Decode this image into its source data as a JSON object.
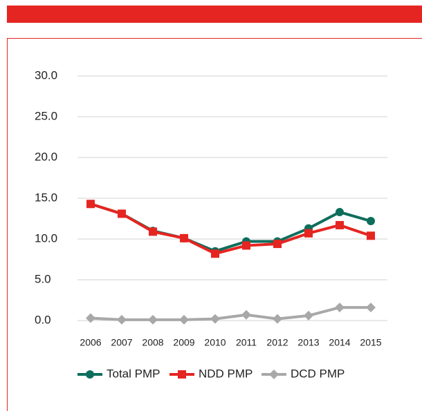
{
  "chart_data": {
    "type": "line",
    "categories": [
      "2006",
      "2007",
      "2008",
      "2009",
      "2010",
      "2011",
      "2012",
      "2013",
      "2014",
      "2015"
    ],
    "series": [
      {
        "name": "Total PMP",
        "color": "#0e6e5c",
        "marker": "circle",
        "values": [
          14.3,
          13.1,
          11.0,
          10.1,
          8.5,
          9.7,
          9.7,
          11.3,
          13.3,
          12.2
        ]
      },
      {
        "name": "NDD PMP",
        "color": "#e52521",
        "marker": "square",
        "values": [
          14.3,
          13.1,
          10.9,
          10.1,
          8.2,
          9.2,
          9.4,
          10.7,
          11.7,
          10.4
        ]
      },
      {
        "name": "DCD PMP",
        "color": "#a8a8a8",
        "marker": "diamond",
        "values": [
          0.3,
          0.1,
          0.1,
          0.1,
          0.2,
          0.7,
          0.2,
          0.6,
          1.6,
          1.6
        ]
      }
    ],
    "ylim": [
      0,
      30
    ],
    "yticks": [
      {
        "value": 0,
        "label": "0.0"
      },
      {
        "value": 5,
        "label": "5.0"
      },
      {
        "value": 10,
        "label": "10.0"
      },
      {
        "value": 15,
        "label": "15.0"
      },
      {
        "value": 20,
        "label": "20.0"
      },
      {
        "value": 25,
        "label": "25.0"
      },
      {
        "value": 30,
        "label": "30.0"
      }
    ],
    "grid": true,
    "legend": "bottom"
  }
}
